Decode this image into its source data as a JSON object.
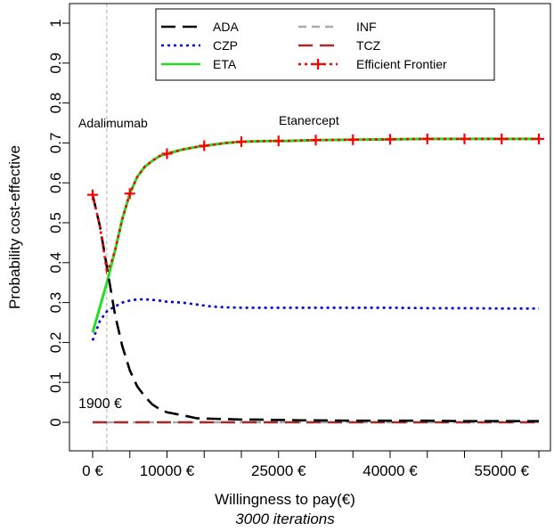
{
  "chart_data": {
    "type": "line",
    "xlabel": "Willingness to pay(€)",
    "subtitle": "3000 iterations",
    "ylabel": "Probability cost-effective",
    "xlim": [
      -2000,
      60000
    ],
    "ylim": [
      0,
      1
    ],
    "x_ticks": [
      {
        "value": 0,
        "label": "0 €"
      },
      {
        "value": 10000,
        "label": "10000 €"
      },
      {
        "value": 25000,
        "label": "25000 €"
      },
      {
        "value": 40000,
        "label": "40000 €"
      },
      {
        "value": 55000,
        "label": "55000 €"
      }
    ],
    "x_minor_ticks": [
      5000,
      15000,
      20000,
      30000,
      35000,
      45000,
      50000,
      60000
    ],
    "y_ticks": [
      {
        "value": 0,
        "label": "0"
      },
      {
        "value": 0.1,
        "label": "0.1"
      },
      {
        "value": 0.2,
        "label": "0.2"
      },
      {
        "value": 0.3,
        "label": "0.3"
      },
      {
        "value": 0.4,
        "label": "0.4"
      },
      {
        "value": 0.5,
        "label": "0.5"
      },
      {
        "value": 0.6,
        "label": "0.6"
      },
      {
        "value": 0.7,
        "label": "0.7"
      },
      {
        "value": 0.8,
        "label": "0.8"
      },
      {
        "value": 0.9,
        "label": "0.9"
      },
      {
        "value": 1,
        "label": "1"
      }
    ],
    "threshold": {
      "x": 1900,
      "label": "1900 €",
      "color": "#bbbbbb"
    },
    "region_labels": [
      {
        "text": "Adalimumab",
        "x": -2000,
        "y": 0.765
      },
      {
        "text": "Etanercept",
        "x": 25500,
        "y": 0.765
      }
    ],
    "x": [
      0,
      1000,
      2000,
      3000,
      4000,
      5000,
      6000,
      7000,
      8000,
      9000,
      10000,
      12000,
      14000,
      16000,
      18000,
      20000,
      22000,
      24000,
      26000,
      28000,
      30000,
      35000,
      40000,
      45000,
      50000,
      55000,
      60000
    ],
    "series": [
      {
        "name": "ADA",
        "color": "#000000",
        "dash": "long-dash",
        "values": [
          0.57,
          0.49,
          0.38,
          0.27,
          0.19,
          0.13,
          0.09,
          0.065,
          0.045,
          0.033,
          0.025,
          0.018,
          0.01,
          0.009,
          0.008,
          0.007,
          0.007,
          0.006,
          0.006,
          0.005,
          0.005,
          0.004,
          0.004,
          0.004,
          0.003,
          0.003,
          0.003
        ]
      },
      {
        "name": "CZP",
        "color": "#0000dd",
        "dash": "dotted",
        "values": [
          0.205,
          0.255,
          0.28,
          0.29,
          0.3,
          0.305,
          0.308,
          0.308,
          0.307,
          0.305,
          0.302,
          0.3,
          0.295,
          0.29,
          0.288,
          0.287,
          0.287,
          0.287,
          0.287,
          0.287,
          0.287,
          0.287,
          0.287,
          0.286,
          0.286,
          0.285,
          0.285
        ]
      },
      {
        "name": "ETA",
        "color": "#22dd22",
        "dash": "solid",
        "values": [
          0.225,
          0.29,
          0.355,
          0.43,
          0.51,
          0.573,
          0.615,
          0.64,
          0.655,
          0.667,
          0.673,
          0.683,
          0.69,
          0.695,
          0.7,
          0.703,
          0.704,
          0.705,
          0.705,
          0.706,
          0.707,
          0.708,
          0.709,
          0.71,
          0.71,
          0.71,
          0.71
        ]
      },
      {
        "name": "INF",
        "color": "#aaaaaa",
        "dash": "dash",
        "values": [
          0,
          0,
          0,
          0,
          0,
          0,
          0,
          0,
          0,
          0,
          0,
          0,
          0,
          0,
          0,
          0,
          0,
          0,
          0,
          0,
          0,
          0,
          0,
          0,
          0,
          0,
          0
        ]
      },
      {
        "name": "TCZ",
        "color": "#a52a2a",
        "dash": "long-dash",
        "values": [
          0,
          0,
          0,
          0,
          0,
          0,
          0,
          0,
          0,
          0,
          0,
          0,
          0,
          0,
          0,
          0,
          0,
          0,
          0,
          0,
          0,
          0,
          0,
          0,
          0,
          0,
          0
        ]
      }
    ],
    "frontier": {
      "name": "Efficient Frontier",
      "color": "#ff0000",
      "dash": "dotted",
      "x": [
        0,
        1000,
        1500,
        1900,
        2500,
        3000,
        4000,
        5000,
        6000,
        7000,
        8000,
        9000,
        10000,
        12000,
        14000,
        16000,
        18000,
        20000,
        22000,
        24000,
        26000,
        28000,
        30000,
        35000,
        40000,
        45000,
        50000,
        55000,
        60000
      ],
      "values": [
        0.57,
        0.49,
        0.43,
        0.38,
        0.4,
        0.43,
        0.51,
        0.573,
        0.615,
        0.64,
        0.655,
        0.667,
        0.673,
        0.683,
        0.69,
        0.695,
        0.7,
        0.703,
        0.704,
        0.705,
        0.705,
        0.706,
        0.707,
        0.708,
        0.709,
        0.71,
        0.71,
        0.71,
        0.71
      ],
      "markers_x": [
        0,
        5000,
        10000,
        15000,
        20000,
        25000,
        30000,
        35000,
        40000,
        45000,
        50000,
        55000,
        60000
      ],
      "markers_y": [
        0.57,
        0.573,
        0.673,
        0.693,
        0.703,
        0.705,
        0.707,
        0.708,
        0.709,
        0.71,
        0.71,
        0.71,
        0.71
      ]
    },
    "legend": {
      "placement": "top-center",
      "entries": [
        {
          "label": "ADA",
          "series": "ADA"
        },
        {
          "label": "CZP",
          "series": "CZP"
        },
        {
          "label": "ETA",
          "series": "ETA"
        },
        {
          "label": "INF",
          "series": "INF"
        },
        {
          "label": "TCZ",
          "series": "TCZ"
        },
        {
          "label": "Efficient Frontier",
          "series": "frontier"
        }
      ]
    }
  }
}
